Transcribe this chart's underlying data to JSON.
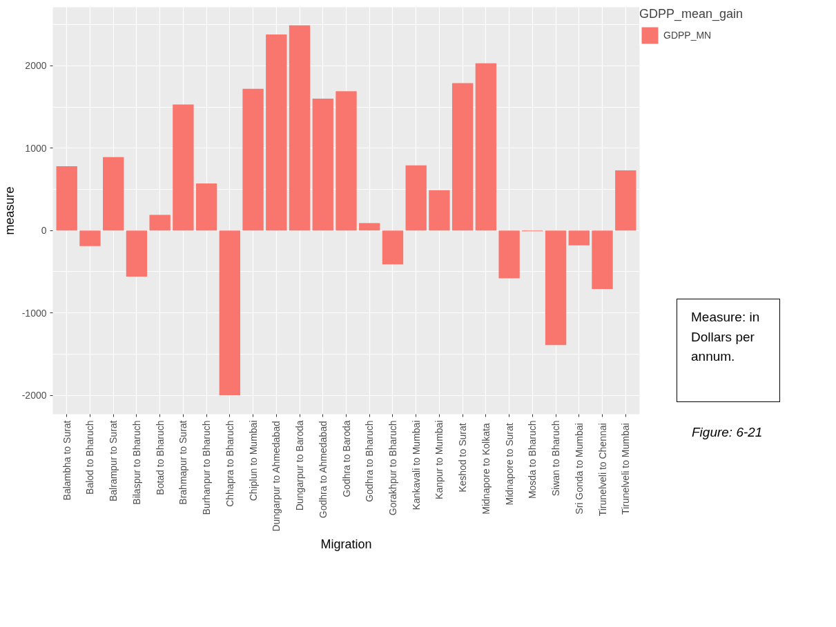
{
  "chart_data": {
    "type": "bar",
    "xlabel": "Migration",
    "ylabel": "measure",
    "legend_title": "GDPP_mean_gain",
    "categories": [
      "Balambha to Surat",
      "Balod to Bharuch",
      "Balrampur to Surat",
      "Bilaspur to Bharuch",
      "Botad to Bharuch",
      "Brahmapur to Surat",
      "Burhanpur to Bharuch",
      "Chhapra to Bharuch",
      "Chiplun to Mumbai",
      "Dungarpur to Ahmedabad",
      "Dungarpur to Baroda",
      "Godhra to Ahmedabad",
      "Godhra to Baroda",
      "Godhra to Bharuch",
      "Gorakhpur to Bharuch",
      "Kankavali to Mumbai",
      "Kanpur to Mumbai",
      "Keshod  to Surat",
      "Midnapore  to Kolkata",
      "Midnapore  to Surat",
      "Mosda to Bharuch",
      "Siwan to Bharuch",
      "Sri Gonda  to Mumbai",
      "Tirunelveli  to Chennai",
      "Tirunelveli  to Mumbai"
    ],
    "series": [
      {
        "name": "GDPP_MN",
        "color": "#f8766d",
        "values": [
          780,
          -190,
          890,
          -560,
          190,
          1530,
          570,
          -2000,
          1720,
          2380,
          2490,
          1600,
          1690,
          90,
          -410,
          790,
          490,
          1790,
          2030,
          -580,
          -10,
          -1390,
          -180,
          -710,
          730
        ]
      }
    ],
    "ylim": [
      -2230,
      2710
    ],
    "yticks": [
      {
        "value": -1500,
        "label": null
      },
      {
        "value": -500,
        "label": null
      },
      {
        "value": 500,
        "label": null
      },
      {
        "value": 1500,
        "label": null
      },
      {
        "value": 2500,
        "label": null
      },
      -2000,
      -1000,
      0,
      1000,
      2000
    ],
    "grid": true,
    "legend": "right",
    "annotations": [
      "Measure: in Dollars per annum.",
      "Figure: 6-21"
    ]
  }
}
